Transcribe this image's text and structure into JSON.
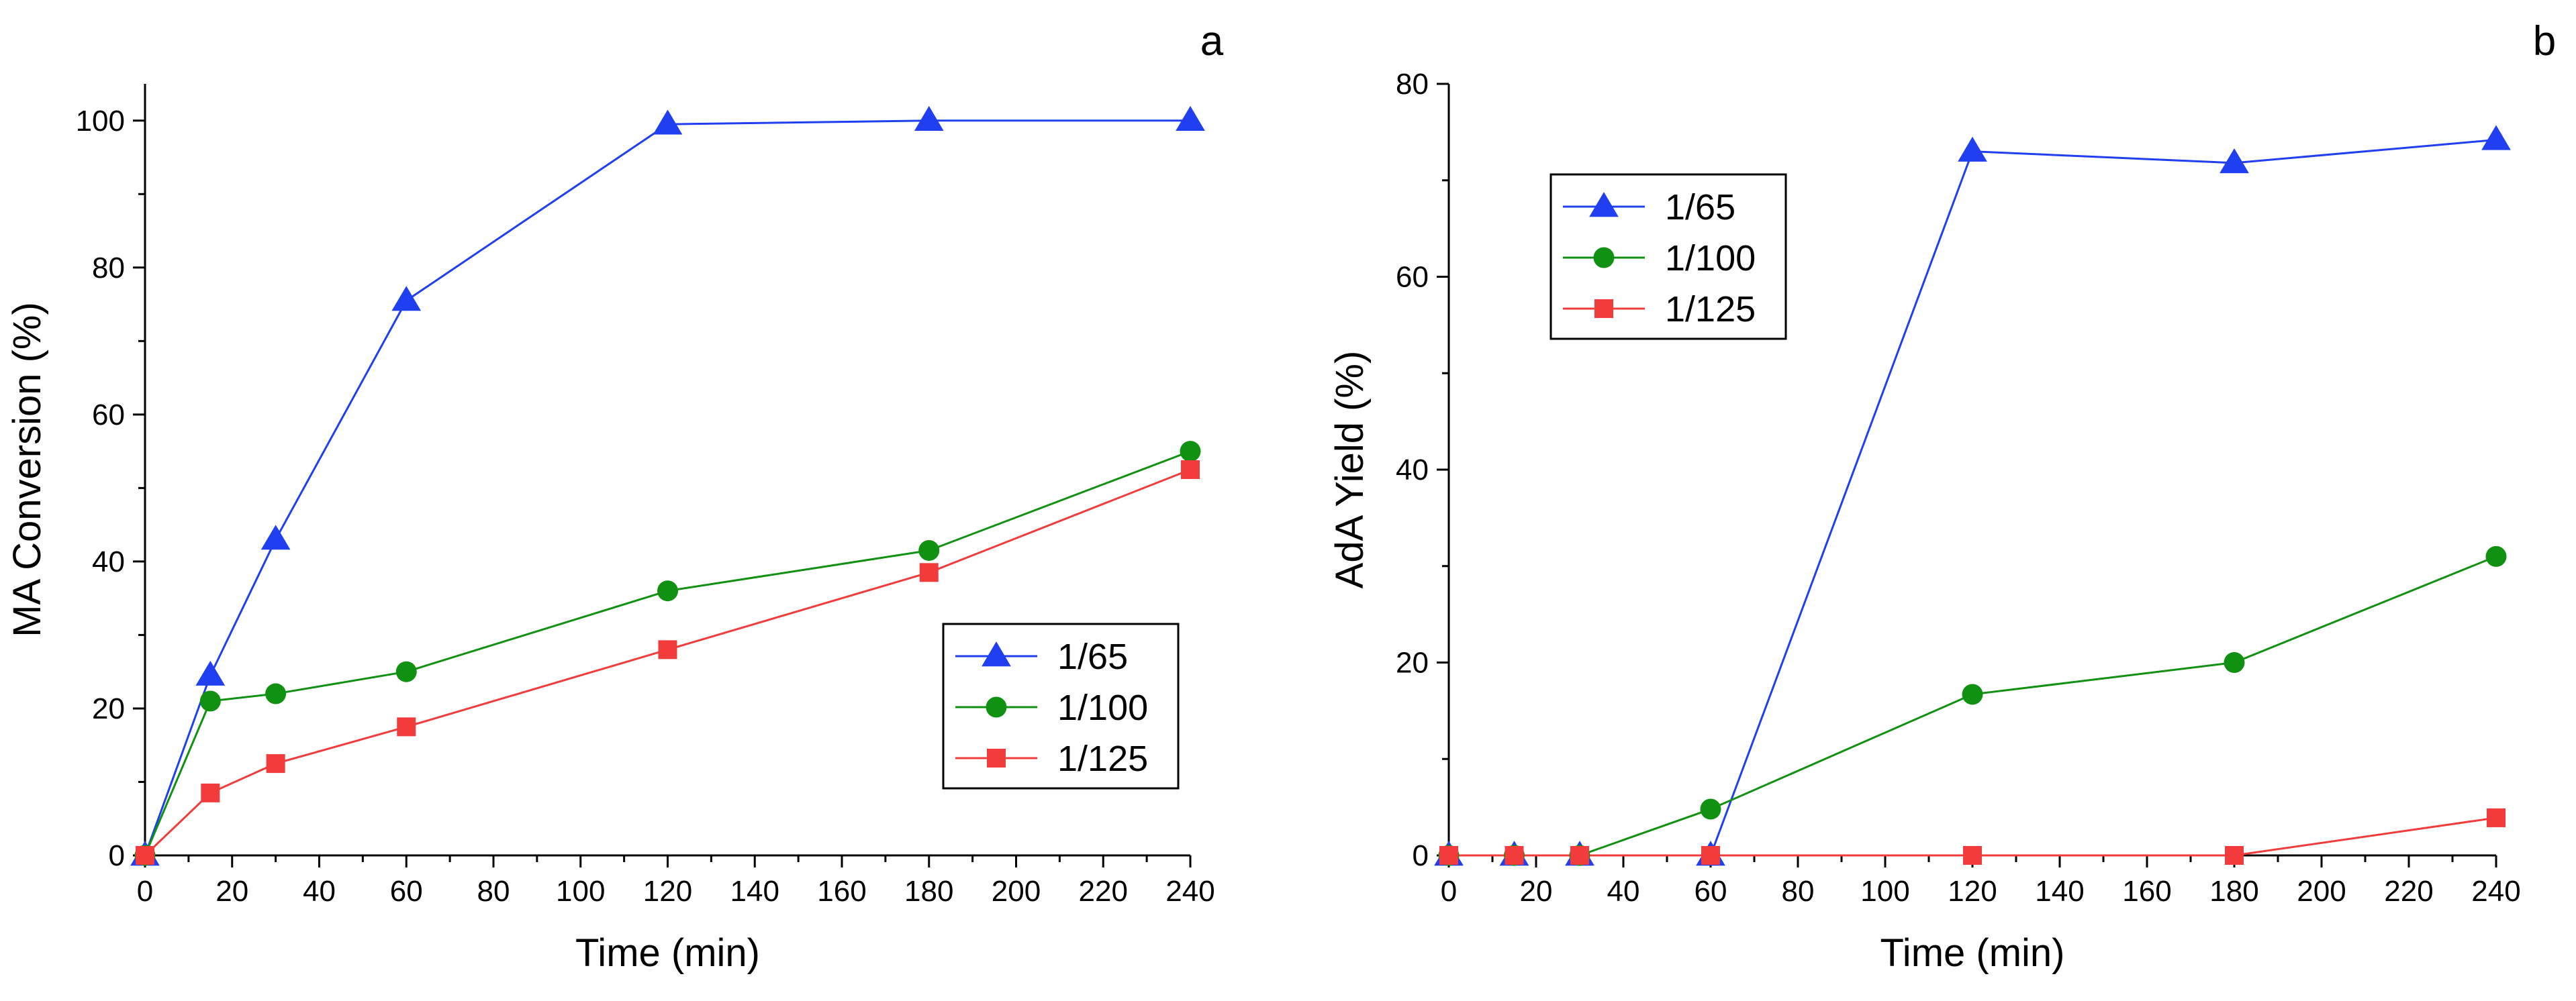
{
  "chart_data": [
    {
      "panel": "a",
      "type": "line",
      "title": "",
      "xlabel": "Time (min)",
      "ylabel": "MA Conversion (%)",
      "xlim": [
        0,
        240
      ],
      "ylim": [
        0,
        105
      ],
      "xticks": [
        0,
        20,
        40,
        60,
        80,
        100,
        120,
        140,
        160,
        180,
        200,
        220,
        240
      ],
      "yticks": [
        0,
        20,
        40,
        60,
        80,
        100
      ],
      "legend_position": "bottom-right",
      "series": [
        {
          "name": "1/65",
          "marker": "triangle",
          "color": "#1f3ff0",
          "x": [
            0,
            15,
            30,
            60,
            120,
            180,
            240
          ],
          "y": [
            0,
            24.5,
            43,
            75.5,
            99.5,
            100,
            100
          ]
        },
        {
          "name": "1/100",
          "marker": "circle",
          "color": "#119111",
          "x": [
            0,
            15,
            30,
            60,
            120,
            180,
            240
          ],
          "y": [
            0,
            21,
            22,
            25,
            36,
            41.5,
            55
          ]
        },
        {
          "name": "1/125",
          "marker": "square",
          "color": "#f23b3b",
          "x": [
            0,
            15,
            30,
            60,
            120,
            180,
            240
          ],
          "y": [
            0,
            8.5,
            12.5,
            17.5,
            28,
            38.5,
            52.5
          ]
        }
      ]
    },
    {
      "panel": "b",
      "type": "line",
      "title": "",
      "xlabel": "Time (min)",
      "ylabel": "AdA Yield (%)",
      "xlim": [
        0,
        240
      ],
      "ylim": [
        0,
        80
      ],
      "xticks": [
        0,
        20,
        40,
        60,
        80,
        100,
        120,
        140,
        160,
        180,
        200,
        220,
        240
      ],
      "yticks": [
        0,
        20,
        40,
        60,
        80
      ],
      "legend_position": "top-left",
      "series": [
        {
          "name": "1/65",
          "marker": "triangle",
          "color": "#1f3ff0",
          "x": [
            0,
            15,
            30,
            60,
            120,
            180,
            240
          ],
          "y": [
            0,
            0,
            0,
            0,
            73,
            71.8,
            74.2
          ]
        },
        {
          "name": "1/100",
          "marker": "circle",
          "color": "#119111",
          "x": [
            0,
            15,
            30,
            60,
            120,
            180,
            240
          ],
          "y": [
            0,
            0,
            0,
            4.8,
            16.7,
            20,
            31
          ]
        },
        {
          "name": "1/125",
          "marker": "square",
          "color": "#f23b3b",
          "x": [
            0,
            15,
            30,
            60,
            120,
            180,
            240
          ],
          "y": [
            0,
            0,
            0,
            0,
            0,
            0,
            3.9
          ]
        }
      ]
    }
  ]
}
